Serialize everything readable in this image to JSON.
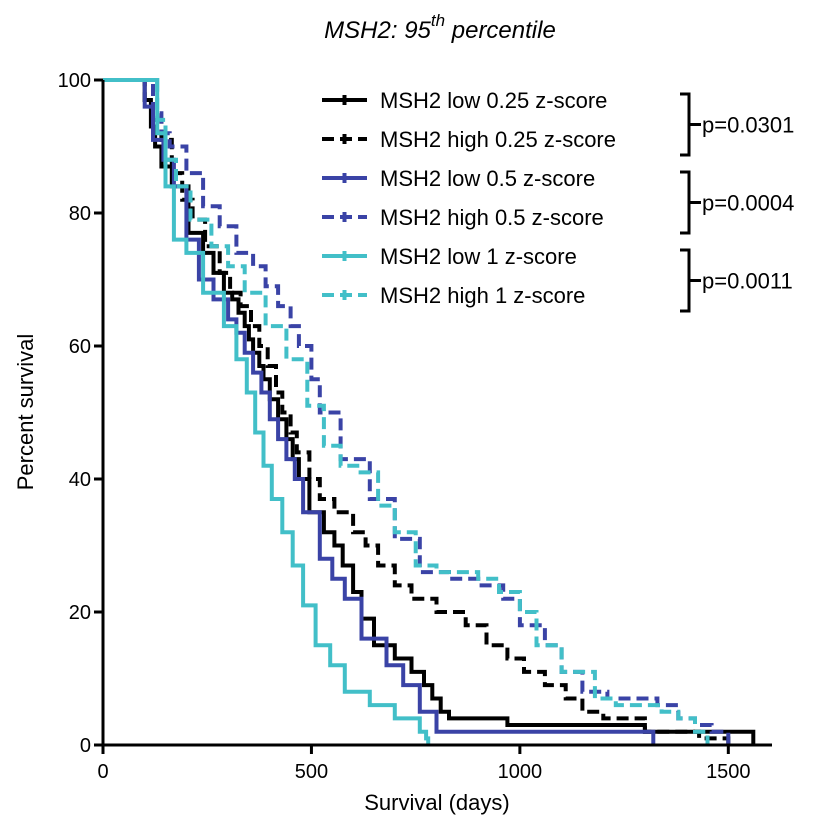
{
  "chart_data": {
    "type": "line",
    "title": {
      "prefix": "MSH2: 95",
      "superscript": "th",
      "suffix": " percentile"
    },
    "xlabel": "Survival (days)",
    "ylabel": "Percent survival",
    "xlim": [
      0,
      1600
    ],
    "ylim": [
      0,
      100
    ],
    "xticks": [
      0,
      500,
      1000,
      1500
    ],
    "yticks": [
      0,
      20,
      40,
      60,
      80,
      100
    ],
    "grid": false,
    "legend_position": "top-right",
    "colors": {
      "black": "#000000",
      "blue": "#3a43a6",
      "cyan": "#42bfc8"
    },
    "series": [
      {
        "name": "MSH2 low 0.25 z-score",
        "color": "#000000",
        "dashed": false,
        "x": [
          0,
          80,
          100,
          115,
          125,
          140,
          165,
          205,
          240,
          265,
          290,
          310,
          325,
          340,
          350,
          360,
          375,
          385,
          400,
          420,
          440,
          455,
          470,
          495,
          530,
          555,
          575,
          600,
          620,
          650,
          700,
          740,
          770,
          790,
          810,
          830,
          970,
          1000,
          1300,
          1550,
          1560
        ],
        "y": [
          100,
          100,
          97,
          93,
          90,
          87,
          84,
          77,
          74,
          71,
          68,
          67,
          65,
          63,
          61,
          59,
          57,
          55,
          52,
          49,
          46,
          43,
          40,
          35,
          32,
          30,
          27,
          23,
          19,
          15,
          13,
          11,
          9,
          7,
          5,
          4,
          3,
          3,
          2,
          2,
          0
        ]
      },
      {
        "name": "MSH2 high 0.25 z-score",
        "color": "#000000",
        "dashed": true,
        "x": [
          0,
          70,
          100,
          120,
          140,
          165,
          190,
          215,
          245,
          280,
          305,
          330,
          355,
          375,
          395,
          415,
          430,
          450,
          465,
          495,
          520,
          555,
          600,
          630,
          660,
          700,
          740,
          800,
          870,
          920,
          970,
          1010,
          1060,
          1110,
          1150,
          1200,
          1260,
          1300,
          1330,
          1360,
          1400,
          1430,
          1480,
          1500
        ],
        "y": [
          100,
          100,
          97,
          94,
          91,
          86,
          82,
          79,
          75,
          71,
          68,
          66,
          63,
          60,
          57,
          53,
          50,
          47,
          44,
          40,
          37,
          35,
          32,
          30,
          27,
          24,
          22,
          20,
          18,
          15,
          13,
          11,
          9,
          7,
          5,
          4,
          4,
          2,
          2,
          2,
          2,
          1,
          1,
          0
        ]
      },
      {
        "name": "MSH2 low 0.5 z-score",
        "color": "#3a43a6",
        "dashed": false,
        "x": [
          0,
          80,
          100,
          120,
          145,
          170,
          200,
          230,
          265,
          300,
          320,
          340,
          360,
          380,
          400,
          420,
          440,
          460,
          480,
          520,
          550,
          580,
          620,
          680,
          720,
          760,
          800,
          1310,
          1320
        ],
        "y": [
          100,
          100,
          96,
          91,
          88,
          84,
          76,
          70,
          67,
          64,
          62,
          59,
          56,
          53,
          49,
          46,
          43,
          40,
          35,
          28,
          25,
          22,
          16,
          12,
          9,
          5,
          2,
          2,
          0
        ]
      },
      {
        "name": "MSH2 high 0.5 z-score",
        "color": "#3a43a6",
        "dashed": true,
        "x": [
          0,
          90,
          120,
          140,
          160,
          200,
          240,
          280,
          320,
          360,
          390,
          420,
          450,
          470,
          500,
          520,
          570,
          640,
          700,
          760,
          830,
          900,
          960,
          1000,
          1060,
          1100,
          1150,
          1210,
          1270,
          1330,
          1380,
          1420,
          1460,
          1500
        ],
        "y": [
          100,
          100,
          95,
          92,
          90,
          86,
          81,
          78,
          74,
          72,
          69,
          66,
          63,
          60,
          55,
          50,
          43,
          37,
          31,
          26,
          25,
          24,
          22,
          18,
          15,
          11,
          8,
          7,
          7,
          6,
          4,
          3,
          2,
          0
        ]
      },
      {
        "name": "MSH2 low 1 z-score",
        "color": "#42bfc8",
        "dashed": false,
        "x": [
          0,
          110,
          130,
          150,
          170,
          200,
          240,
          290,
          320,
          345,
          365,
          385,
          405,
          430,
          455,
          480,
          510,
          545,
          580,
          640,
          700,
          760,
          775,
          780
        ],
        "y": [
          100,
          100,
          92,
          84,
          76,
          74,
          68,
          63,
          58,
          53,
          47,
          42,
          37,
          32,
          27,
          21,
          15,
          12,
          8,
          6,
          4,
          2,
          1,
          0
        ]
      },
      {
        "name": "MSH2 high 1 z-score",
        "color": "#42bfc8",
        "dashed": true,
        "x": [
          0,
          110,
          130,
          150,
          175,
          210,
          260,
          300,
          340,
          390,
          440,
          490,
          530,
          570,
          610,
          660,
          700,
          750,
          800,
          900,
          950,
          1000,
          1040,
          1100,
          1180,
          1230,
          1280,
          1340,
          1380,
          1420,
          1450
        ],
        "y": [
          100,
          100,
          94,
          88,
          84,
          79,
          75,
          72,
          68,
          63,
          58,
          51,
          45,
          42,
          41,
          36,
          32,
          27,
          26,
          25,
          23,
          20,
          15,
          11,
          7,
          6,
          6,
          5,
          4,
          2,
          0
        ]
      }
    ],
    "comparisons": [
      {
        "label": "p=0.0301",
        "series": [
          0,
          1
        ]
      },
      {
        "label": "p=0.0004",
        "series": [
          2,
          3
        ]
      },
      {
        "label": "p=0.0011",
        "series": [
          4,
          5
        ]
      }
    ]
  }
}
